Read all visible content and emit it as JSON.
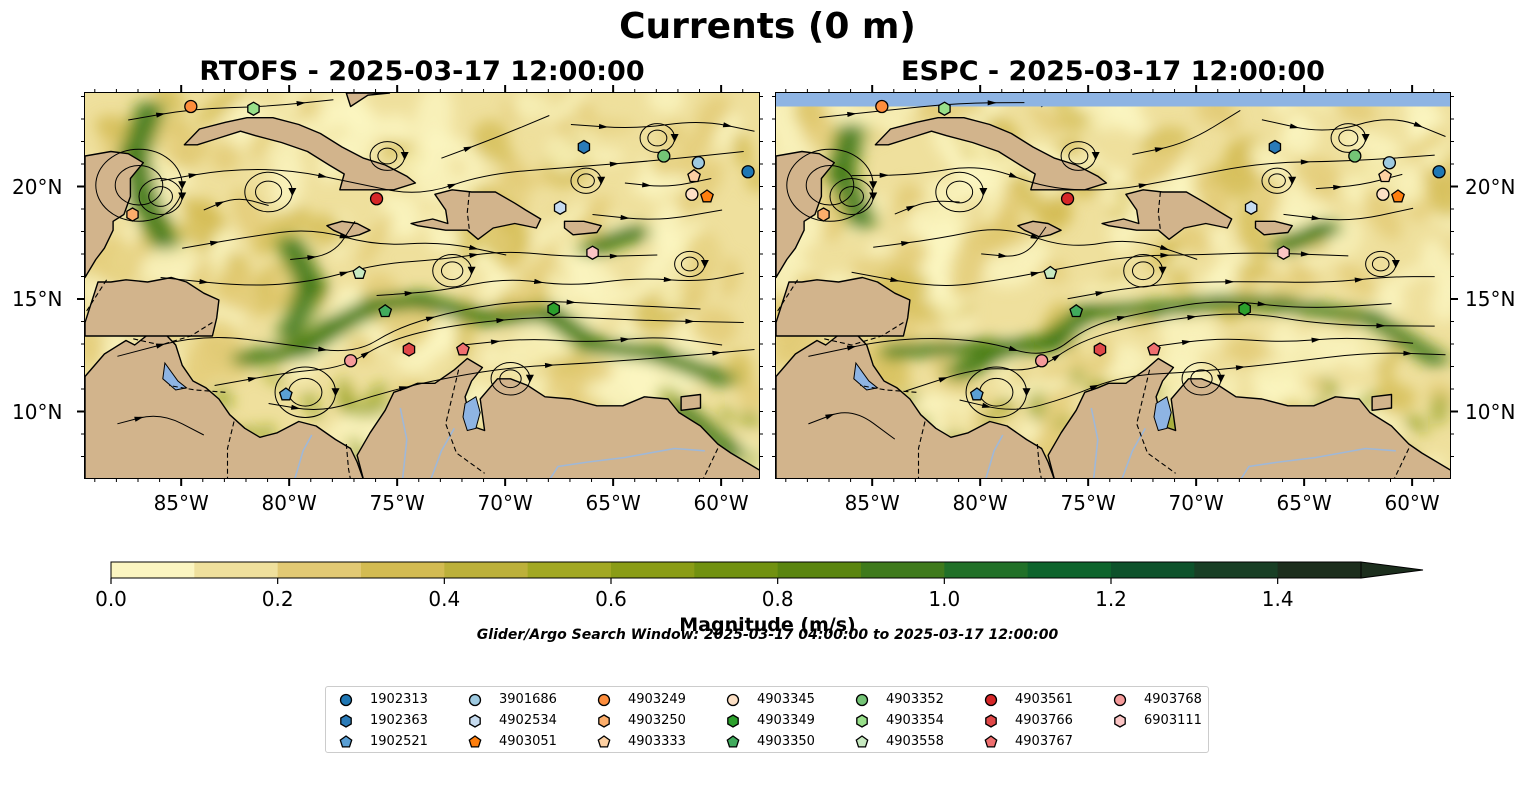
{
  "figure": {
    "title": "Currents (0 m)",
    "search_window": "Glider/Argo Search Window: 2025-03-17 04:00:00 to 2025-03-17 12:00:00"
  },
  "panels": [
    {
      "id": "rtofs",
      "title": "RTOFS - 2025-03-17 12:00:00"
    },
    {
      "id": "espc",
      "title": "ESPC - 2025-03-17 12:00:00"
    }
  ],
  "colors": {
    "land": "#d2b48c",
    "lake": "#8eb4e3",
    "espc_nodata_band": "#8eb4e3",
    "river": "#9fb8d8"
  },
  "chart_data": {
    "type": "map",
    "x_axis": {
      "ticks": [
        "85°W",
        "80°W",
        "75°W",
        "70°W",
        "65°W",
        "60°W"
      ],
      "tick_values": [
        -85,
        -80,
        -75,
        -70,
        -65,
        -60
      ],
      "xlim": [
        -89.5,
        -58.2
      ]
    },
    "y_axis": {
      "ticks": [
        "20°N",
        "15°N",
        "10°N"
      ],
      "tick_values": [
        20,
        15,
        10
      ],
      "ylim": [
        7.0,
        24.2
      ]
    },
    "colorbar": {
      "label": "Magnitude (m/s)",
      "boundaries": [
        0.0,
        0.1,
        0.2,
        0.3,
        0.4,
        0.5,
        0.6,
        0.7,
        0.8,
        0.9,
        1.0,
        1.1,
        1.2,
        1.3,
        1.4,
        1.5
      ],
      "tick_labels": [
        "0.0",
        "0.2",
        "0.4",
        "0.6",
        "0.8",
        "1.0",
        "1.2",
        "1.4"
      ],
      "tick_values": [
        0.0,
        0.2,
        0.4,
        0.6,
        0.8,
        1.0,
        1.2,
        1.4
      ],
      "colors": [
        "#fbf5c1",
        "#efe09d",
        "#e2c974",
        "#d3bb52",
        "#bcb03a",
        "#a2a823",
        "#8a9c16",
        "#719110",
        "#5a850f",
        "#3f7a1c",
        "#217028",
        "#0d642c",
        "#0d522b",
        "#183f25",
        "#1c2e1d"
      ],
      "extend": "max"
    },
    "floats": [
      {
        "id": "1902313",
        "marker": "circle",
        "color": "#1f77b4",
        "lon": -58.8,
        "lat": 20.7
      },
      {
        "id": "1902363",
        "marker": "hexagon",
        "color": "#2a7bb8",
        "lon": -66.4,
        "lat": 21.8
      },
      {
        "id": "1902521",
        "marker": "pentagon",
        "color": "#5a9fd4",
        "lon": -80.2,
        "lat": 10.8
      },
      {
        "id": "3901686",
        "marker": "circle",
        "color": "#9ecae1",
        "lon": -61.1,
        "lat": 21.1
      },
      {
        "id": "4902534",
        "marker": "hexagon",
        "color": "#c6dbef",
        "lon": -67.5,
        "lat": 19.1
      },
      {
        "id": "4903051",
        "marker": "pentagon",
        "color": "#ff7f0e",
        "lon": -60.7,
        "lat": 19.6
      },
      {
        "id": "4903249",
        "marker": "circle",
        "color": "#fd8d3c",
        "lon": -84.6,
        "lat": 23.6
      },
      {
        "id": "4903250",
        "marker": "hexagon",
        "color": "#fdae6b",
        "lon": -87.3,
        "lat": 18.8
      },
      {
        "id": "4903333",
        "marker": "pentagon",
        "color": "#fdd0a2",
        "lon": -61.3,
        "lat": 20.5
      },
      {
        "id": "4903345",
        "marker": "circle",
        "color": "#fde0c5",
        "lon": -61.4,
        "lat": 19.7
      },
      {
        "id": "4903349",
        "marker": "hexagon",
        "color": "#2ca02c",
        "lon": -67.8,
        "lat": 14.6
      },
      {
        "id": "4903350",
        "marker": "pentagon",
        "color": "#41ab5d",
        "lon": -75.6,
        "lat": 14.5
      },
      {
        "id": "4903352",
        "marker": "circle",
        "color": "#74c476",
        "lon": -62.7,
        "lat": 21.4
      },
      {
        "id": "4903354",
        "marker": "hexagon",
        "color": "#98df8a",
        "lon": -81.7,
        "lat": 23.5
      },
      {
        "id": "4903558",
        "marker": "pentagon",
        "color": "#c7e9c0",
        "lon": -76.8,
        "lat": 16.2
      },
      {
        "id": "4903561",
        "marker": "circle",
        "color": "#d62728",
        "lon": -76.0,
        "lat": 19.5
      },
      {
        "id": "4903766",
        "marker": "hexagon",
        "color": "#e04848",
        "lon": -74.5,
        "lat": 12.8
      },
      {
        "id": "4903767",
        "marker": "pentagon",
        "color": "#ef6f6f",
        "lon": -72.0,
        "lat": 12.8
      },
      {
        "id": "4903768",
        "marker": "circle",
        "color": "#f59a9a",
        "lon": -77.2,
        "lat": 12.3
      },
      {
        "id": "6903111",
        "marker": "hexagon",
        "color": "#fbc5c5",
        "lon": -66.0,
        "lat": 17.1
      }
    ]
  }
}
